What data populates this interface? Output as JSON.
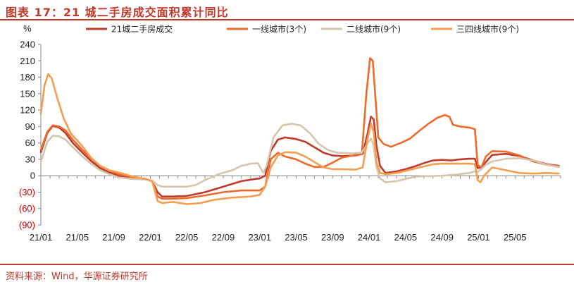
{
  "title": "图表 17：21 城二手房成交面积累计同比",
  "source": "资料来源：Wind，华源证券研究所",
  "chart_data": {
    "type": "line",
    "title": "21 城二手房成交面积累计同比",
    "ylabel": "%",
    "xlabel": "",
    "ylim": [
      -90,
      240
    ],
    "yticks": [
      {
        "value": 240,
        "label": "240"
      },
      {
        "value": 210,
        "label": "210"
      },
      {
        "value": 180,
        "label": "180"
      },
      {
        "value": 150,
        "label": "150"
      },
      {
        "value": 120,
        "label": "120"
      },
      {
        "value": 90,
        "label": "90"
      },
      {
        "value": 60,
        "label": "60"
      },
      {
        "value": 30,
        "label": "30"
      },
      {
        "value": 0,
        "label": "0"
      },
      {
        "value": -30,
        "label": "(30)"
      },
      {
        "value": -60,
        "label": "(60)"
      },
      {
        "value": -90,
        "label": "(90)"
      }
    ],
    "xticks": [
      {
        "t": 0,
        "label": "21/01"
      },
      {
        "t": 4,
        "label": "21/05"
      },
      {
        "t": 8,
        "label": "21/09"
      },
      {
        "t": 12,
        "label": "22/01"
      },
      {
        "t": 16,
        "label": "22/05"
      },
      {
        "t": 20,
        "label": "22/09"
      },
      {
        "t": 24,
        "label": "23/01"
      },
      {
        "t": 28,
        "label": "23/05"
      },
      {
        "t": 32,
        "label": "23/09"
      },
      {
        "t": 36,
        "label": "24/01"
      },
      {
        "t": 40,
        "label": "24/05"
      },
      {
        "t": 44,
        "label": "24/09"
      },
      {
        "t": 48,
        "label": "25/01"
      },
      {
        "t": 52,
        "label": "25/05"
      }
    ],
    "x_range": [
      0,
      57
    ],
    "legend_position": "top",
    "series": [
      {
        "name": "21城二手房成交",
        "color": "#c0392b",
        "width": 2.6,
        "points": [
          [
            0,
            43
          ],
          [
            0.7,
            78
          ],
          [
            1.3,
            91
          ],
          [
            2,
            88
          ],
          [
            2.7,
            78
          ],
          [
            3.5,
            60
          ],
          [
            4.5,
            43
          ],
          [
            5.5,
            27
          ],
          [
            6.5,
            14
          ],
          [
            7.5,
            6
          ],
          [
            8.5,
            0
          ],
          [
            10,
            -4
          ],
          [
            11.5,
            -6
          ],
          [
            12.2,
            -10
          ],
          [
            12.8,
            -30
          ],
          [
            13.3,
            -38
          ],
          [
            14.5,
            -38
          ],
          [
            16,
            -37
          ],
          [
            18,
            -30
          ],
          [
            20,
            -20
          ],
          [
            22,
            -10
          ],
          [
            23.5,
            -6
          ],
          [
            24,
            -5
          ],
          [
            24.6,
            0
          ],
          [
            25.2,
            45
          ],
          [
            26,
            66
          ],
          [
            26.8,
            70
          ],
          [
            28,
            67
          ],
          [
            29,
            62
          ],
          [
            30,
            52
          ],
          [
            31,
            42
          ],
          [
            32,
            37
          ],
          [
            33,
            36
          ],
          [
            34.5,
            37
          ],
          [
            35.3,
            40
          ],
          [
            35.8,
            75
          ],
          [
            36.2,
            108
          ],
          [
            36.5,
            103
          ],
          [
            36.8,
            55
          ],
          [
            37.2,
            18
          ],
          [
            37.8,
            5
          ],
          [
            39,
            8
          ],
          [
            40,
            12
          ],
          [
            41,
            17
          ],
          [
            42,
            23
          ],
          [
            43,
            28
          ],
          [
            44,
            29
          ],
          [
            45,
            28
          ],
          [
            46,
            30
          ],
          [
            47,
            31
          ],
          [
            47.6,
            31
          ],
          [
            47.9,
            14
          ],
          [
            48.3,
            15
          ],
          [
            48.8,
            25
          ],
          [
            49.5,
            38
          ],
          [
            51,
            40
          ],
          [
            52.5,
            36
          ],
          [
            54,
            28
          ],
          [
            55.5,
            21
          ],
          [
            56.8,
            18
          ]
        ]
      },
      {
        "name": "一线城市(3个)",
        "color": "#ec6a2a",
        "width": 2.6,
        "points": [
          [
            0,
            47
          ],
          [
            0.7,
            80
          ],
          [
            1.3,
            92
          ],
          [
            2,
            90
          ],
          [
            2.7,
            83
          ],
          [
            3.5,
            66
          ],
          [
            4.5,
            48
          ],
          [
            5.5,
            32
          ],
          [
            6.5,
            18
          ],
          [
            7.5,
            10
          ],
          [
            8.5,
            3
          ],
          [
            10,
            -3
          ],
          [
            11.5,
            -6
          ],
          [
            12.2,
            -10
          ],
          [
            12.8,
            -38
          ],
          [
            13.3,
            -42
          ],
          [
            14.5,
            -42
          ],
          [
            16,
            -41
          ],
          [
            18,
            -36
          ],
          [
            20,
            -30
          ],
          [
            22,
            -27
          ],
          [
            24,
            -27
          ],
          [
            24.6,
            -20
          ],
          [
            25.2,
            30
          ],
          [
            26,
            42
          ],
          [
            26.8,
            35
          ],
          [
            28,
            30
          ],
          [
            29,
            22
          ],
          [
            30,
            16
          ],
          [
            31,
            16
          ],
          [
            32,
            24
          ],
          [
            33,
            33
          ],
          [
            34.5,
            38
          ],
          [
            35.2,
            40
          ],
          [
            35.7,
            150
          ],
          [
            36.1,
            215
          ],
          [
            36.4,
            210
          ],
          [
            36.7,
            140
          ],
          [
            37,
            70
          ],
          [
            37.6,
            58
          ],
          [
            38.4,
            53
          ],
          [
            39.5,
            60
          ],
          [
            40.5,
            68
          ],
          [
            41.5,
            82
          ],
          [
            42.5,
            95
          ],
          [
            43.5,
            106
          ],
          [
            44.3,
            111
          ],
          [
            44.8,
            108
          ],
          [
            45.2,
            93
          ],
          [
            46,
            90
          ],
          [
            47,
            88
          ],
          [
            47.6,
            85
          ],
          [
            47.9,
            20
          ],
          [
            48.3,
            15
          ],
          [
            48.8,
            35
          ],
          [
            49.5,
            45
          ],
          [
            51,
            44
          ],
          [
            52.5,
            37
          ],
          [
            54,
            26
          ],
          [
            55.5,
            20
          ],
          [
            56.8,
            17
          ]
        ]
      },
      {
        "name": "二线城市(9个)",
        "color": "#d6c5ad",
        "width": 2.6,
        "points": [
          [
            0,
            25
          ],
          [
            0.7,
            62
          ],
          [
            1.3,
            73
          ],
          [
            2,
            72
          ],
          [
            2.7,
            66
          ],
          [
            3.5,
            52
          ],
          [
            4.5,
            36
          ],
          [
            5.5,
            22
          ],
          [
            6.5,
            10
          ],
          [
            7.5,
            3
          ],
          [
            8.5,
            -3
          ],
          [
            10,
            -6
          ],
          [
            11.5,
            -7
          ],
          [
            12.2,
            -9
          ],
          [
            12.8,
            -17
          ],
          [
            13.3,
            -20
          ],
          [
            14.5,
            -20
          ],
          [
            16,
            -20
          ],
          [
            17,
            -17
          ],
          [
            18,
            -8
          ],
          [
            19.5,
            3
          ],
          [
            21,
            10
          ],
          [
            22,
            18
          ],
          [
            23,
            22
          ],
          [
            23.8,
            23
          ],
          [
            24.4,
            5
          ],
          [
            24.8,
            20
          ],
          [
            25.5,
            70
          ],
          [
            26.5,
            92
          ],
          [
            27.5,
            95
          ],
          [
            28.5,
            92
          ],
          [
            29.5,
            78
          ],
          [
            30.5,
            58
          ],
          [
            31.5,
            47
          ],
          [
            32.5,
            42
          ],
          [
            34,
            41
          ],
          [
            35.2,
            42
          ],
          [
            35.8,
            58
          ],
          [
            36.2,
            68
          ],
          [
            36.5,
            55
          ],
          [
            36.8,
            15
          ],
          [
            37.2,
            -5
          ],
          [
            37.8,
            -12
          ],
          [
            39,
            -10
          ],
          [
            40,
            -6
          ],
          [
            41,
            -2
          ],
          [
            42,
            -1
          ],
          [
            44,
            0
          ],
          [
            45.5,
            2
          ],
          [
            47,
            5
          ],
          [
            47.6,
            8
          ],
          [
            47.9,
            7
          ],
          [
            48.3,
            12
          ],
          [
            48.8,
            20
          ],
          [
            49.5,
            26
          ],
          [
            51,
            31
          ],
          [
            52.5,
            32
          ],
          [
            54,
            28
          ],
          [
            55.5,
            20
          ],
          [
            56.8,
            16
          ]
        ]
      },
      {
        "name": "三四线城市(9个)",
        "color": "#f59d50",
        "width": 2.6,
        "points": [
          [
            0,
            113
          ],
          [
            0.4,
            165
          ],
          [
            0.8,
            186
          ],
          [
            1.2,
            178
          ],
          [
            1.8,
            142
          ],
          [
            2.5,
            105
          ],
          [
            3.3,
            77
          ],
          [
            4.5,
            55
          ],
          [
            5.5,
            33
          ],
          [
            6.5,
            18
          ],
          [
            7.5,
            10
          ],
          [
            8.5,
            6
          ],
          [
            10,
            -1
          ],
          [
            11.5,
            -6
          ],
          [
            12.2,
            -10
          ],
          [
            12.8,
            -46
          ],
          [
            13.3,
            -50
          ],
          [
            14.5,
            -48
          ],
          [
            16,
            -52
          ],
          [
            17.5,
            -50
          ],
          [
            19,
            -44
          ],
          [
            21,
            -40
          ],
          [
            23,
            -38
          ],
          [
            24,
            -35
          ],
          [
            24.6,
            -20
          ],
          [
            25.2,
            15
          ],
          [
            26,
            37
          ],
          [
            26.8,
            43
          ],
          [
            28,
            42
          ],
          [
            29,
            35
          ],
          [
            30,
            25
          ],
          [
            31,
            15
          ],
          [
            32,
            12
          ],
          [
            33,
            12
          ],
          [
            34.5,
            11
          ],
          [
            35.3,
            15
          ],
          [
            35.8,
            65
          ],
          [
            36.2,
            95
          ],
          [
            36.5,
            80
          ],
          [
            36.8,
            25
          ],
          [
            37.2,
            5
          ],
          [
            37.8,
            3
          ],
          [
            39,
            5
          ],
          [
            40,
            9
          ],
          [
            41,
            13
          ],
          [
            42,
            17
          ],
          [
            43,
            21
          ],
          [
            44,
            22
          ],
          [
            45,
            22
          ],
          [
            46,
            22
          ],
          [
            47,
            22
          ],
          [
            47.6,
            21
          ],
          [
            47.9,
            -8
          ],
          [
            48.2,
            -12
          ],
          [
            48.6,
            0
          ],
          [
            49.5,
            15
          ],
          [
            51,
            10
          ],
          [
            52.5,
            5
          ],
          [
            54,
            4
          ],
          [
            55.5,
            5
          ],
          [
            56.8,
            4
          ]
        ]
      }
    ]
  }
}
